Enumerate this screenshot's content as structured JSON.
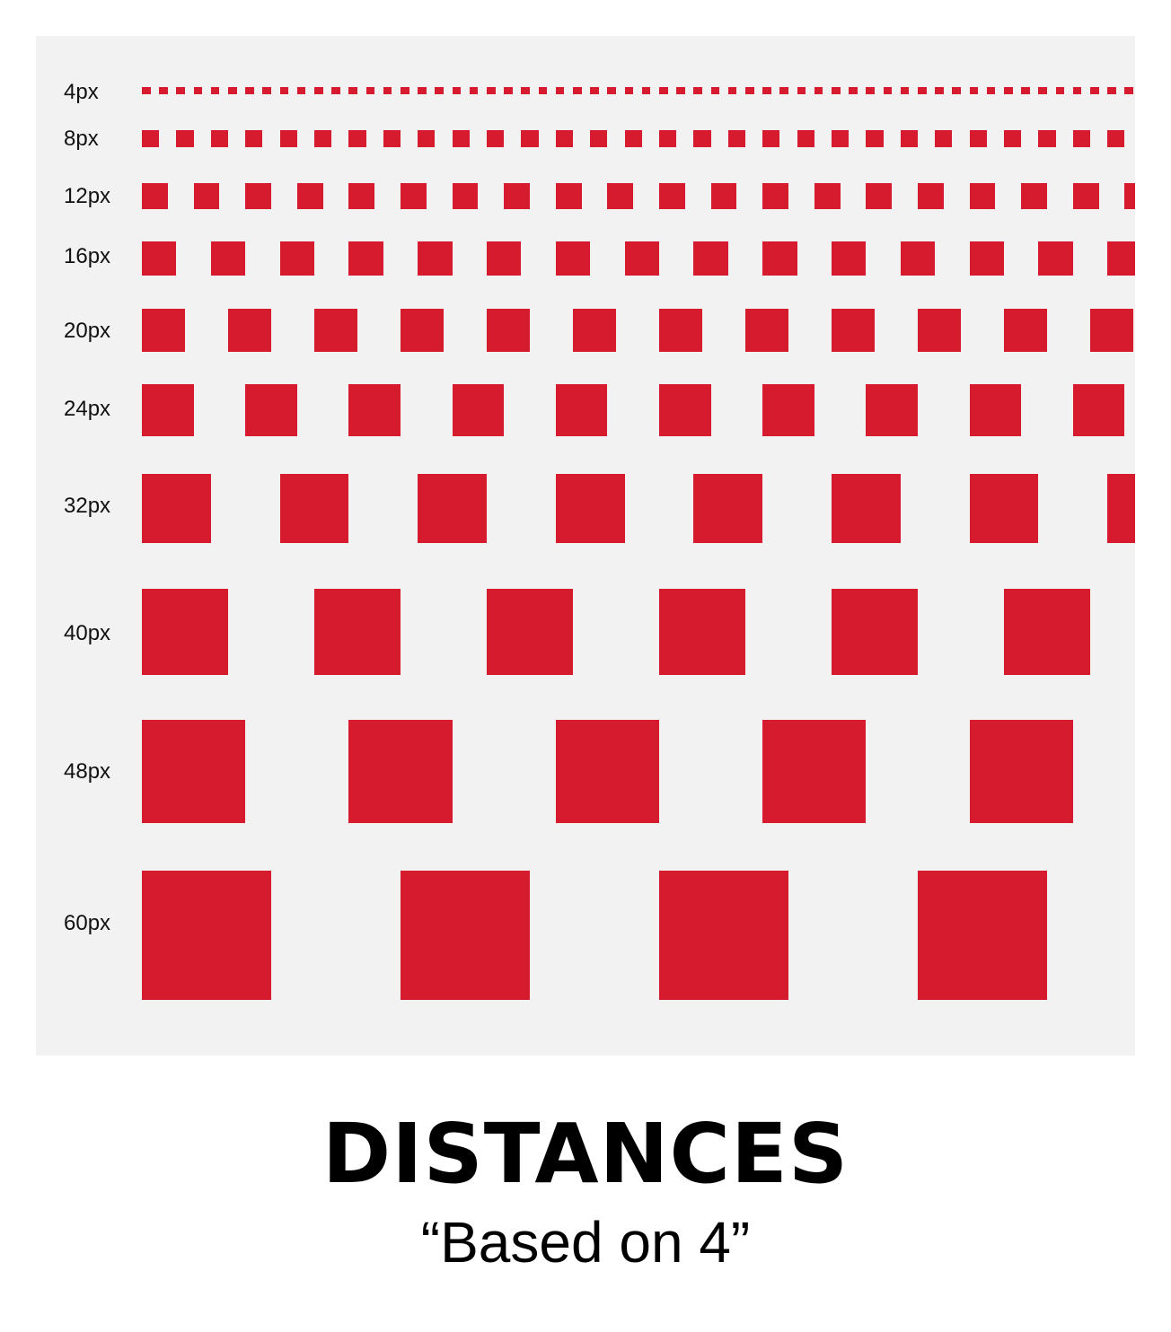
{
  "accent_color": "#d51b2d",
  "background_color": "#f2f2f2",
  "rows": [
    {
      "label": "4px",
      "size": 4
    },
    {
      "label": "8px",
      "size": 8
    },
    {
      "label": "12px",
      "size": 12
    },
    {
      "label": "16px",
      "size": 16
    },
    {
      "label": "20px",
      "size": 20
    },
    {
      "label": "24px",
      "size": 24
    },
    {
      "label": "32px",
      "size": 32
    },
    {
      "label": "40px",
      "size": 40
    },
    {
      "label": "48px",
      "size": 48
    },
    {
      "label": "60px",
      "size": 60
    }
  ],
  "title": "DISTANCES",
  "subtitle": "“Based on 4”"
}
